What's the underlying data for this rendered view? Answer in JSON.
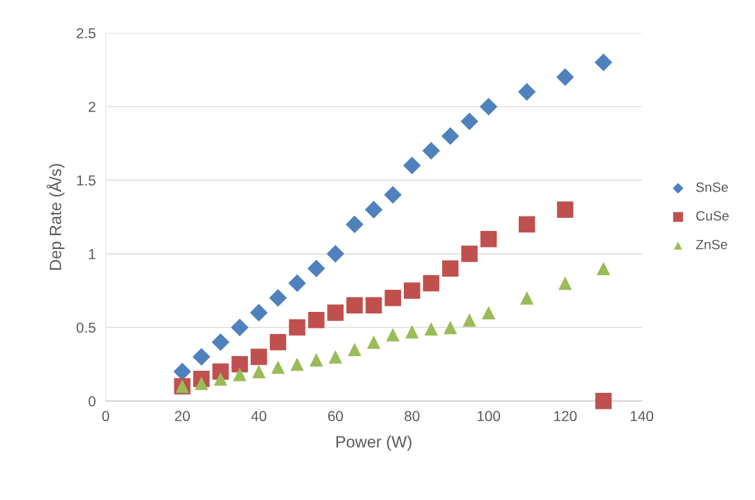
{
  "chart_data": {
    "type": "scatter",
    "xlabel": "Power (W)",
    "ylabel": "Dep Rate (Å/s)",
    "x": [
      20,
      25,
      30,
      35,
      40,
      45,
      50,
      55,
      60,
      65,
      70,
      75,
      80,
      85,
      90,
      95,
      100,
      110,
      120,
      130
    ],
    "series": [
      {
        "name": "SnSe",
        "color": "#4f81bd",
        "marker": "diamond",
        "values": [
          0.2,
          0.3,
          0.4,
          0.5,
          0.6,
          0.7,
          0.8,
          0.9,
          1.0,
          1.2,
          1.3,
          1.4,
          1.6,
          1.7,
          1.8,
          1.9,
          2.0,
          2.1,
          2.2,
          2.3
        ]
      },
      {
        "name": "CuSe",
        "color": "#c0504d",
        "marker": "square",
        "values": [
          0.1,
          0.15,
          0.2,
          0.25,
          0.3,
          0.4,
          0.5,
          0.55,
          0.6,
          0.65,
          0.65,
          0.7,
          0.75,
          0.8,
          0.9,
          1.0,
          1.1,
          1.2,
          1.3,
          0
        ]
      },
      {
        "name": "ZnSe",
        "color": "#9bbb59",
        "marker": "triangle",
        "values": [
          0.1,
          0.12,
          0.15,
          0.18,
          0.2,
          0.23,
          0.25,
          0.28,
          0.3,
          0.35,
          0.4,
          0.45,
          0.47,
          0.49,
          0.5,
          0.55,
          0.6,
          0.7,
          0.8,
          0.9
        ]
      }
    ],
    "xlim": [
      0,
      140
    ],
    "xticks": [
      0,
      20,
      40,
      60,
      80,
      100,
      120,
      140
    ],
    "ylim": [
      0,
      2.5
    ],
    "yticks": [
      0,
      0.5,
      1,
      1.5,
      2,
      2.5
    ],
    "grid": "y",
    "legend": "right"
  }
}
